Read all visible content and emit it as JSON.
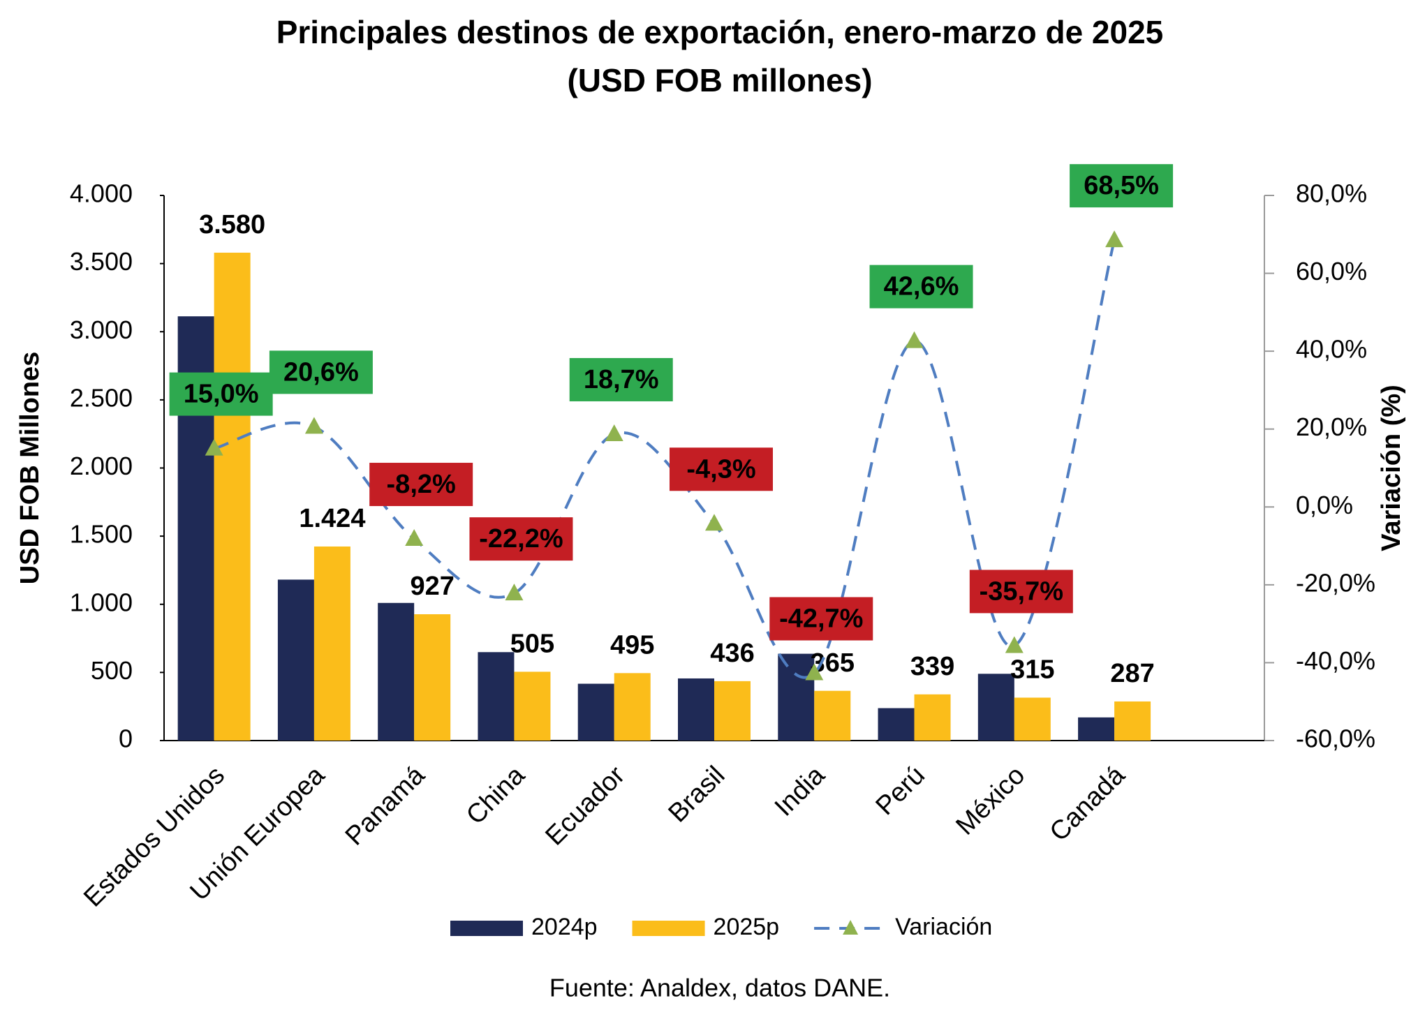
{
  "chart_data": {
    "type": "bar",
    "title": "Principales destinos de exportación, enero-marzo de 2025",
    "subtitle": "(USD FOB millones)",
    "y_label": "USD FOB Millones",
    "y2_label": "Variación (%)",
    "source": "Fuente: Analdex, datos DANE.",
    "categories": [
      "Estados Unidos",
      "Unión Europea",
      "Panamá",
      "China",
      "Ecuador",
      "Brasil",
      "India",
      "Perú",
      "México",
      "Canadá"
    ],
    "series": [
      {
        "name": "2024p",
        "color": "#1f2a56",
        "type": "bar",
        "axis": "y",
        "values": [
          3113,
          1181,
          1010,
          649,
          417,
          456,
          637,
          238,
          490,
          170
        ]
      },
      {
        "name": "2025p",
        "color": "#fbbd1a",
        "type": "bar",
        "axis": "y",
        "values": [
          3580,
          1424,
          927,
          505,
          495,
          436,
          365,
          339,
          315,
          287
        ],
        "value_labels": [
          "3.580",
          "1.424",
          "927",
          "505",
          "495",
          "436",
          "365",
          "339",
          "315",
          "287"
        ]
      },
      {
        "name": "Variación",
        "color": "#4f7dc1",
        "marker_color": "#8fb24e",
        "type": "line",
        "axis": "y2",
        "values": [
          15.0,
          20.6,
          -8.2,
          -22.2,
          18.7,
          -4.3,
          -42.7,
          42.6,
          -35.7,
          68.5
        ],
        "value_labels": [
          "15,0%",
          "20,6%",
          "-8,2%",
          "-22,2%",
          "18,7%",
          "-4,3%",
          "-42,7%",
          "42,6%",
          "-35,7%",
          "68,5%"
        ]
      }
    ],
    "positive_label_color": "#2ea94f",
    "negative_label_color": "#c41e24",
    "ylim": [
      0,
      4000
    ],
    "yticks": [
      0,
      500,
      {
        "value": 1000,
        "label": "1.000"
      },
      {
        "value": 1500,
        "label": "1.500"
      },
      {
        "value": 2000,
        "label": "2.000"
      },
      {
        "value": 2500,
        "label": "2.500"
      },
      {
        "value": 3000,
        "label": "3.000"
      },
      {
        "value": 3500,
        "label": "3.500"
      },
      {
        "value": 4000,
        "label": "4.000"
      }
    ],
    "y2lim": [
      -60,
      80
    ],
    "y2ticks": [
      {
        "value": -60,
        "label": "-60,0%"
      },
      {
        "value": -40,
        "label": "-40,0%"
      },
      {
        "value": -20,
        "label": "-20,0%"
      },
      {
        "value": 0,
        "label": "0,0%"
      },
      {
        "value": 20,
        "label": "20,0%"
      },
      {
        "value": 40,
        "label": "40,0%"
      },
      {
        "value": 60,
        "label": "60,0%"
      },
      {
        "value": 80,
        "label": "80,0%"
      }
    ],
    "grid": false
  }
}
